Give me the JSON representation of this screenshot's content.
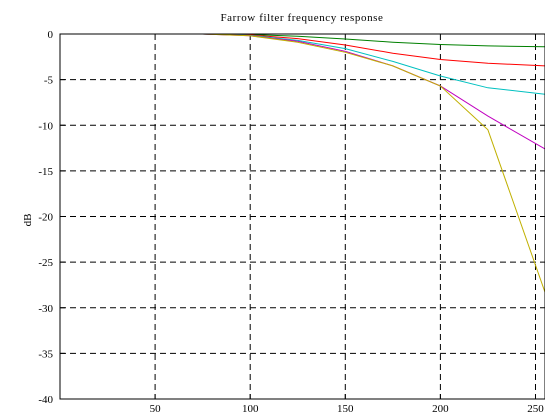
{
  "chart_data": {
    "type": "line",
    "title": "Farrow filter frequency response",
    "xlabel": "",
    "ylabel": "dB",
    "xlim": [
      0,
      255
    ],
    "ylim": [
      -40,
      0
    ],
    "x_ticks": [
      50,
      100,
      150,
      200,
      250
    ],
    "x_tick_labels": [
      "50",
      "100",
      "150",
      "200",
      "250"
    ],
    "y_ticks": [
      0,
      -5,
      -10,
      -15,
      -20,
      -25,
      -30,
      -35,
      -40
    ],
    "y_tick_labels": [
      "0",
      "-5",
      "-10",
      "-15",
      "-20",
      "-25",
      "-30",
      "-35",
      "-40"
    ],
    "grid": true,
    "grid_style": "dashed",
    "x": [
      0,
      25,
      50,
      75,
      100,
      125,
      150,
      175,
      200,
      225,
      255
    ],
    "series": [
      {
        "color": "#0000ff",
        "values": [
          0,
          0,
          0,
          0,
          0,
          0,
          0,
          0,
          0,
          0,
          0
        ]
      },
      {
        "color": "#008000",
        "values": [
          0,
          0,
          0,
          0,
          -0.05,
          -0.25,
          -0.55,
          -0.9,
          -1.15,
          -1.3,
          -1.4
        ]
      },
      {
        "color": "#ff0000",
        "values": [
          0,
          0,
          0,
          0,
          -0.1,
          -0.5,
          -1.2,
          -2.1,
          -2.8,
          -3.2,
          -3.5
        ]
      },
      {
        "color": "#00c0c0",
        "values": [
          0,
          0,
          0,
          0,
          -0.15,
          -0.7,
          -1.6,
          -3.0,
          -4.6,
          -5.9,
          -6.6
        ]
      },
      {
        "color": "#c000c0",
        "values": [
          0,
          0,
          0,
          0,
          -0.2,
          -0.8,
          -1.9,
          -3.5,
          -5.7,
          -9.0,
          -12.6
        ]
      },
      {
        "color": "#c0b000",
        "values": [
          0,
          0,
          0,
          0,
          -0.2,
          -0.9,
          -2.0,
          -3.5,
          -5.7,
          -10.5,
          -28.3
        ]
      }
    ]
  }
}
